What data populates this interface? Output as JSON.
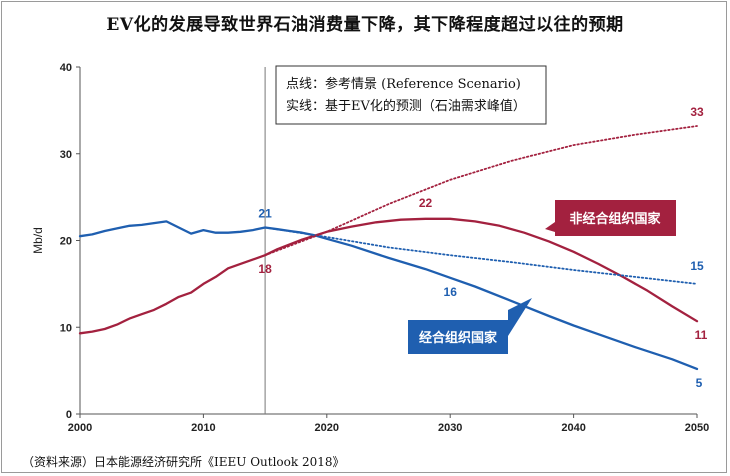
{
  "title": "EV化的发展导致世界石油消费量下降，其下降程度超过以往的预期",
  "source": "（资料来源）日本能源经济研究所《IEEU Outlook 2018》",
  "legend": {
    "line1": "点线：参考情景 (Reference Scenario)",
    "line2": "实线：基于EV化的预测（石油需求峰值）"
  },
  "chart_data": {
    "type": "line",
    "ylabel": "Mb/d",
    "xlim": [
      2000,
      2050
    ],
    "ylim": [
      0,
      40
    ],
    "x_ticks": [
      2000,
      2010,
      2020,
      2030,
      2040,
      2050
    ],
    "y_ticks": [
      0,
      10,
      20,
      30,
      40
    ],
    "marker_year": 2015,
    "colors": {
      "oecd": "#1f5fb0",
      "nonoecd": "#a3213f"
    },
    "series": [
      {
        "name": "经合组织国家",
        "key": "oecd",
        "style": "solid",
        "x": [
          2000,
          2001,
          2002,
          2003,
          2004,
          2005,
          2006,
          2007,
          2008,
          2009,
          2010,
          2011,
          2012,
          2013,
          2014,
          2015,
          2016,
          2017,
          2018,
          2019,
          2020,
          2022,
          2025,
          2028,
          2030,
          2032,
          2035,
          2038,
          2040,
          2042,
          2045,
          2048,
          2050
        ],
        "y": [
          20.5,
          20.7,
          21.1,
          21.4,
          21.7,
          21.8,
          22.0,
          22.2,
          21.5,
          20.8,
          21.2,
          20.9,
          20.9,
          21.0,
          21.2,
          21.5,
          21.3,
          21.1,
          20.9,
          20.6,
          20.2,
          19.4,
          18.0,
          16.7,
          15.7,
          14.7,
          13.0,
          11.3,
          10.2,
          9.2,
          7.7,
          6.3,
          5.2
        ]
      },
      {
        "name": "非经合组织国家",
        "key": "nonoecd",
        "style": "solid",
        "x": [
          2000,
          2001,
          2002,
          2003,
          2004,
          2005,
          2006,
          2007,
          2008,
          2009,
          2010,
          2011,
          2012,
          2013,
          2014,
          2015,
          2016,
          2018,
          2020,
          2022,
          2024,
          2026,
          2028,
          2030,
          2032,
          2034,
          2036,
          2038,
          2040,
          2042,
          2044,
          2046,
          2048,
          2050
        ],
        "y": [
          9.3,
          9.5,
          9.8,
          10.3,
          11.0,
          11.5,
          12.0,
          12.7,
          13.5,
          14.0,
          15.0,
          15.8,
          16.8,
          17.3,
          17.8,
          18.3,
          19.0,
          20.1,
          21.0,
          21.6,
          22.1,
          22.4,
          22.5,
          22.5,
          22.2,
          21.7,
          20.9,
          19.9,
          18.7,
          17.3,
          15.8,
          14.2,
          12.4,
          10.7
        ]
      },
      {
        "name": "经合组织国家 参考情景",
        "key": "oecd",
        "style": "dotted",
        "x": [
          2015,
          2020,
          2025,
          2030,
          2035,
          2040,
          2045,
          2050
        ],
        "y": [
          21.5,
          20.4,
          19.2,
          18.3,
          17.5,
          16.6,
          15.8,
          15.0
        ]
      },
      {
        "name": "非经合组织国家 参考情景",
        "key": "nonoecd",
        "style": "dotted",
        "x": [
          2015,
          2020,
          2025,
          2030,
          2035,
          2040,
          2045,
          2050
        ],
        "y": [
          18.3,
          21.0,
          24.2,
          27.0,
          29.2,
          31.0,
          32.2,
          33.2
        ]
      }
    ],
    "annotations": [
      {
        "text": "21",
        "x": 2015,
        "y": 21.5,
        "key": "oecd"
      },
      {
        "text": "18",
        "x": 2015,
        "y": 18.3,
        "key": "nonoecd"
      },
      {
        "text": "22",
        "x": 2028,
        "y": 22.5,
        "key": "nonoecd"
      },
      {
        "text": "16",
        "x": 2030,
        "y": 15.7,
        "key": "oecd"
      },
      {
        "text": "33",
        "x": 2050,
        "y": 33.2,
        "key": "nonoecd"
      },
      {
        "text": "15",
        "x": 2050,
        "y": 15.0,
        "key": "oecd"
      },
      {
        "text": "11",
        "x": 2050,
        "y": 10.7,
        "key": "nonoecd"
      },
      {
        "text": "5",
        "x": 2050,
        "y": 5.2,
        "key": "oecd"
      }
    ],
    "labels": [
      {
        "text": "非经合组织国家",
        "key": "nonoecd"
      },
      {
        "text": "经合组织国家",
        "key": "oecd"
      }
    ]
  }
}
